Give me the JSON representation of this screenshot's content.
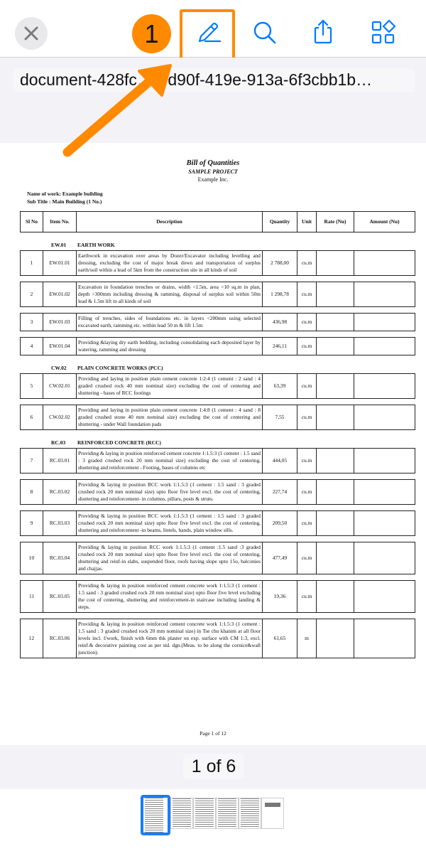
{
  "toolbar": {
    "close_icon": "close-icon",
    "step_badge": "1",
    "icons": [
      "pencil-markup-icon",
      "search-icon",
      "share-icon",
      "grid-apps-icon"
    ],
    "accent_color": "#007aff",
    "annotation_color": "#ff8a00"
  },
  "document": {
    "filename": "document-428fc…3-d90f-419e-913a-6f3cbb1b…",
    "title": "Bill of Quantities",
    "project": "SAMPLE PROJECT",
    "company": "Example Inc.",
    "name_of_work": "Name of work: Example building",
    "sub_title": "Sub Title : Main Building (1 No.)",
    "columns": [
      "Sl No",
      "Item No.",
      "Description",
      "Quantity",
      "Unit",
      "Rate (Nu)",
      "Amount (Nu)"
    ],
    "sections": [
      {
        "code": "EW.01",
        "name": "EARTH WORK",
        "items": [
          {
            "sl": "1",
            "item": "EW.01.01",
            "desc": "Earthwork in excavation over areas by Dozer/Excavator including levelling and dressing, excluding the cost of major break down and transportation of surplus earth/soil within a lead of 5km from the construction site in all kinds of soil",
            "qty": "2 788,00",
            "unit": "cu.m"
          },
          {
            "sl": "2",
            "item": "EW.01.02",
            "desc": "Excavation in foundation trenches or drains, width <1.5m, area <10 sq.m in plan, depth >300mm including dressing & ramming, disposal of surplus soil within 50m lead & 1.5m lift  in all kinds of soil",
            "qty": "1 298,78",
            "unit": "cu.m"
          },
          {
            "sl": "3",
            "item": "EW.01.03",
            "desc": "Filling of trenches, sides of foundations etc. in layers <200mm using selected excavated earth, ramming etc. within lead 50 m & lift 1.5m",
            "qty": "436,98",
            "unit": "cu.m"
          },
          {
            "sl": "4",
            "item": "EW.01.04",
            "desc": "Providing &laying dry earth bedding, including consolidating each deposited layer by watering, ramming and dressing",
            "qty": "246,11",
            "unit": "cu.m"
          }
        ]
      },
      {
        "code": "CW.02",
        "name": "PLAIN CONCRETE WORKS (PCC)",
        "items": [
          {
            "sl": "5",
            "item": "CW.02.01",
            "desc": "Providing and laying in position plain cement concrete 1:2:4 (1 cement : 2 sand : 4 graded crushed rock 40 mm nominal size) excluding the cost of centering and shuttering - bases of RCC footings",
            "qty": "63,39",
            "unit": "cu.m"
          },
          {
            "sl": "6",
            "item": "CW.02.02",
            "desc": "Providing and laying in position plain cement concrete 1:4:8 (1 cement : 4 sand : 8 graded crushed stone 40 mm nominal size) excluding the cost of centering and shuttering - under Wall foundation pads",
            "qty": "7,55",
            "unit": "cu.m"
          }
        ]
      },
      {
        "code": "RC.03",
        "name": "REINFORCED  CONCRETE (RCC)",
        "items": [
          {
            "sl": "7",
            "item": "RC.03.01",
            "desc": "Providing & laying in position reinforced cement concrete 1:1.5:3 (1 cement : 1.5 sand : 3 graded crushed rock 20 mm nominal size) excluding the cost of centering, shuttering and reinforcement - Footing, bases of columns etc",
            "qty": "444,05",
            "unit": "cu.m"
          },
          {
            "sl": "8",
            "item": "RC.03.02",
            "desc": "Providing & laying in position RCC work 1:1.5:3 (1 cement : 1.5 sand : 3 graded crushed rock 20 mm nominal size) upto floor five level excl. the cost of centering, shuttering and reinforcement- in columns, pillars, posts  & struts.",
            "qty": "227,74",
            "unit": "cu.m"
          },
          {
            "sl": "9",
            "item": "RC.03.03",
            "desc": "Providing & laying in position RCC work 1:1.5:3 (1 cement : 1.5 sand : 3 graded crushed rock 20 mm nominal size)  upto floor five level excl. the cost of centering, shuttering and reinforcement -in beams, lintels, bands, plain window sills.",
            "qty": "209,50",
            "unit": "cu.m"
          },
          {
            "sl": "10",
            "item": "RC.03.04",
            "desc": "Providing & laying in position RCC work 1:1.5:3 (1 cement :1.5 sand :3 graded crushed rock 20 mm nominal size)  upto floor five level excl. the cost of centering, shuttering and reinf-in slabs, suspended floor, roofs having slope upto 15o, balconies and chajjas.",
            "qty": "477,49",
            "unit": "cu.m"
          },
          {
            "sl": "11",
            "item": "RC.03.05",
            "desc": "Providing & laying in position reinforced cement concrete work 1:1.5:3 (1 cement : 1.5 sand : 3 graded crushed rock 20 mm nominal size)  upto floor five level excluding the cost of centering, shuttering and reinforcement-in staircase including landing & steps.",
            "qty": "19,36",
            "unit": "cu.m"
          },
          {
            "sl": "12",
            "item": "RC.03.06",
            "desc": "Providing & laying in position reinforced cement concrete work 1:1.5:3 (1 cement : 1.5 sand : 3 graded crushed rock 20 mm nominal size) in Tse chu khanim at all floor levels incl. f/work, finish with 6mm thk plaster on exp. surface with CM 1:3, excl. reinf.& decorative painting cost as per std. dgn.(Meas. to be along the cornice&wall junction).",
            "qty": "61,65",
            "unit": "m"
          }
        ]
      }
    ],
    "page_footer": "Page 1 of 12"
  },
  "pager": {
    "label": "1 of 6",
    "current_page": 1,
    "total_thumbnails": 6
  }
}
